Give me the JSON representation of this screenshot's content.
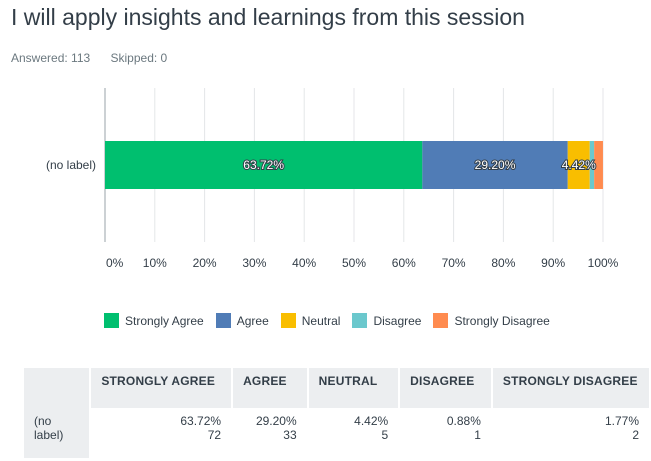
{
  "header": {
    "title": "I will apply insights and learnings from this session",
    "answered": "Answered: 113",
    "skipped": "Skipped: 0"
  },
  "chart_data": {
    "type": "bar",
    "orientation": "horizontal-stacked",
    "categories": [
      "(no label)"
    ],
    "series": [
      {
        "name": "Strongly Agree",
        "values": [
          63.72
        ],
        "label": "63.72%",
        "color": "#00bf6f"
      },
      {
        "name": "Agree",
        "values": [
          29.2
        ],
        "label": "29.20%",
        "color": "#507cb6"
      },
      {
        "name": "Neutral",
        "values": [
          4.42
        ],
        "label": "4.42%",
        "color": "#f9be00"
      },
      {
        "name": "Disagree",
        "values": [
          0.88
        ],
        "label": "",
        "color": "#6bc8cd"
      },
      {
        "name": "Strongly Disagree",
        "values": [
          1.77
        ],
        "label": "",
        "color": "#ff8b4f"
      }
    ],
    "xlim": [
      0,
      100
    ],
    "xticks": [
      "0%",
      "10%",
      "20%",
      "30%",
      "40%",
      "50%",
      "60%",
      "70%",
      "80%",
      "90%",
      "100%"
    ],
    "grid": true,
    "legend_position": "bottom"
  },
  "table": {
    "headers": [
      "",
      "STRONGLY AGREE",
      "AGREE",
      "NEUTRAL",
      "DISAGREE",
      "STRONGLY DISAGREE"
    ],
    "row": {
      "label": "(no label)",
      "cells": [
        {
          "pct": "63.72%",
          "count": "72"
        },
        {
          "pct": "29.20%",
          "count": "33"
        },
        {
          "pct": "4.42%",
          "count": "5"
        },
        {
          "pct": "0.88%",
          "count": "1"
        },
        {
          "pct": "1.77%",
          "count": "2"
        }
      ]
    }
  }
}
